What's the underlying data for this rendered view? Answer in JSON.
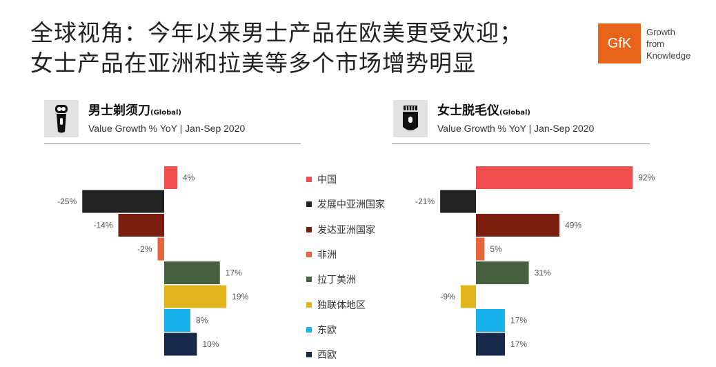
{
  "title": {
    "line1": "全球视角：今年以来男士产品在欧美更受欢迎；",
    "line2": "女士产品在亚洲和拉美等多个市场增势明显"
  },
  "logo": {
    "mark": "GfK",
    "tagline": [
      "Growth",
      "from",
      "Knowledge"
    ]
  },
  "legend": [
    {
      "label": "中国",
      "color": "#f04e4e"
    },
    {
      "label": "发展中亚洲国家",
      "color": "#222222"
    },
    {
      "label": "发达亚洲国家",
      "color": "#7b1e10"
    },
    {
      "label": "非洲",
      "color": "#e8643a"
    },
    {
      "label": "拉丁美洲",
      "color": "#46603f"
    },
    {
      "label": "独联体地区",
      "color": "#e2b51c"
    },
    {
      "label": "东欧",
      "color": "#17b2ec"
    },
    {
      "label": "西欧",
      "color": "#172848"
    }
  ],
  "chart_data": [
    {
      "type": "bar",
      "orientation": "horizontal",
      "title": "男士剃须刀",
      "title_suffix": "(Global)",
      "subtitle": "Value Growth % YoY | Jan-Sep 2020",
      "icon": "shaver-icon",
      "categories": [
        "中国",
        "发展中亚洲国家",
        "发达亚洲国家",
        "非洲",
        "拉丁美洲",
        "独联体地区",
        "东欧",
        "西欧"
      ],
      "values": [
        4,
        -25,
        -14,
        -2,
        17,
        19,
        8,
        10
      ],
      "labels": [
        "4%",
        "-25%",
        "-14%",
        "-2%",
        "17%",
        "19%",
        "8%",
        "10%"
      ]
    },
    {
      "type": "bar",
      "orientation": "horizontal",
      "title": "女士脱毛仪",
      "title_suffix": "(Global)",
      "subtitle": "Value Growth % YoY | Jan-Sep 2020",
      "icon": "epilator-icon",
      "categories": [
        "中国",
        "发展中亚洲国家",
        "发达亚洲国家",
        "非洲",
        "拉丁美洲",
        "独联体地区",
        "东欧",
        "西欧"
      ],
      "values": [
        92,
        -21,
        49,
        5,
        31,
        -9,
        17,
        17
      ],
      "labels": [
        "92%",
        "-21%",
        "49%",
        "5%",
        "31%",
        "-9%",
        "17%",
        "17%"
      ]
    }
  ]
}
